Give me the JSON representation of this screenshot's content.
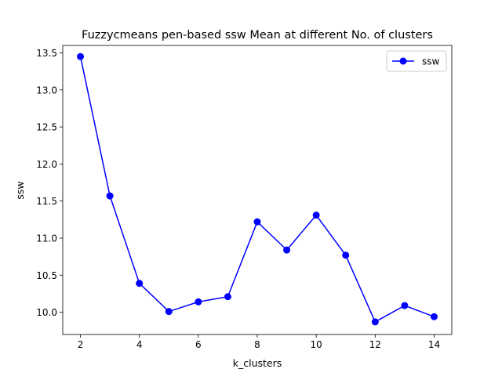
{
  "chart_data": {
    "type": "line",
    "title": "Fuzzycmeans pen-based ssw Mean at different No. of clusters",
    "xlabel": "k_clusters",
    "ylabel": "ssw",
    "xlim": [
      1.4,
      14.6
    ],
    "ylim": [
      9.7,
      13.6
    ],
    "xticks": [
      2,
      4,
      6,
      8,
      10,
      12,
      14
    ],
    "yticks": [
      10.0,
      10.5,
      11.0,
      11.5,
      12.0,
      12.5,
      13.0,
      13.5
    ],
    "xtick_labels": [
      "2",
      "4",
      "6",
      "8",
      "10",
      "12",
      "14"
    ],
    "ytick_labels": [
      "10.0",
      "10.5",
      "11.0",
      "11.5",
      "12.0",
      "12.5",
      "13.0",
      "13.5"
    ],
    "grid": false,
    "legend_position": "top-right",
    "series": [
      {
        "name": "ssw",
        "color": "#0000ff",
        "marker": "circle",
        "x": [
          2,
          3,
          4,
          5,
          6,
          7,
          8,
          9,
          10,
          11,
          12,
          13,
          14
        ],
        "y": [
          13.45,
          11.57,
          10.39,
          10.01,
          10.14,
          10.21,
          11.22,
          10.84,
          11.31,
          10.77,
          9.87,
          10.09,
          9.94
        ]
      }
    ]
  }
}
